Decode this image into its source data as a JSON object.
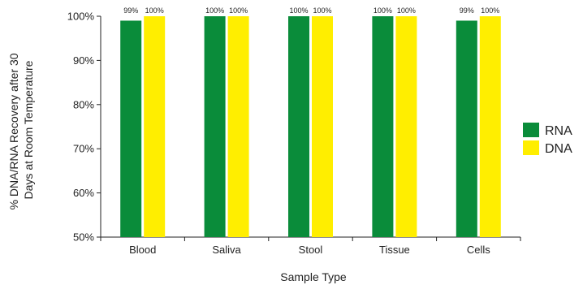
{
  "chart_data": {
    "type": "bar",
    "title": "",
    "xlabel": "Sample Type",
    "ylabel": "% DNA/RNA Recovery after 30 Days at Room Temperature",
    "ylabel_lines": [
      "% DNA/RNA Recovery after 30",
      "Days at Room Temperature"
    ],
    "ylim": [
      50,
      100
    ],
    "yticks": [
      50,
      60,
      70,
      80,
      90,
      100
    ],
    "ytick_labels": [
      "50%",
      "60%",
      "70%",
      "80%",
      "90%",
      "100%"
    ],
    "categories": [
      "Blood",
      "Saliva",
      "Stool",
      "Tissue",
      "Cells"
    ],
    "series": [
      {
        "name": "RNA",
        "color": "#0a8c3a",
        "values": [
          99,
          100,
          100,
          100,
          99
        ],
        "data_labels": [
          "99%",
          "100%",
          "100%",
          "100%",
          "99%"
        ]
      },
      {
        "name": "DNA",
        "color": "#ffee00",
        "values": [
          100,
          100,
          100,
          100,
          100
        ],
        "data_labels": [
          "100%",
          "100%",
          "100%",
          "100%",
          "100%"
        ]
      }
    ],
    "grid": false,
    "legend_position": "right"
  }
}
